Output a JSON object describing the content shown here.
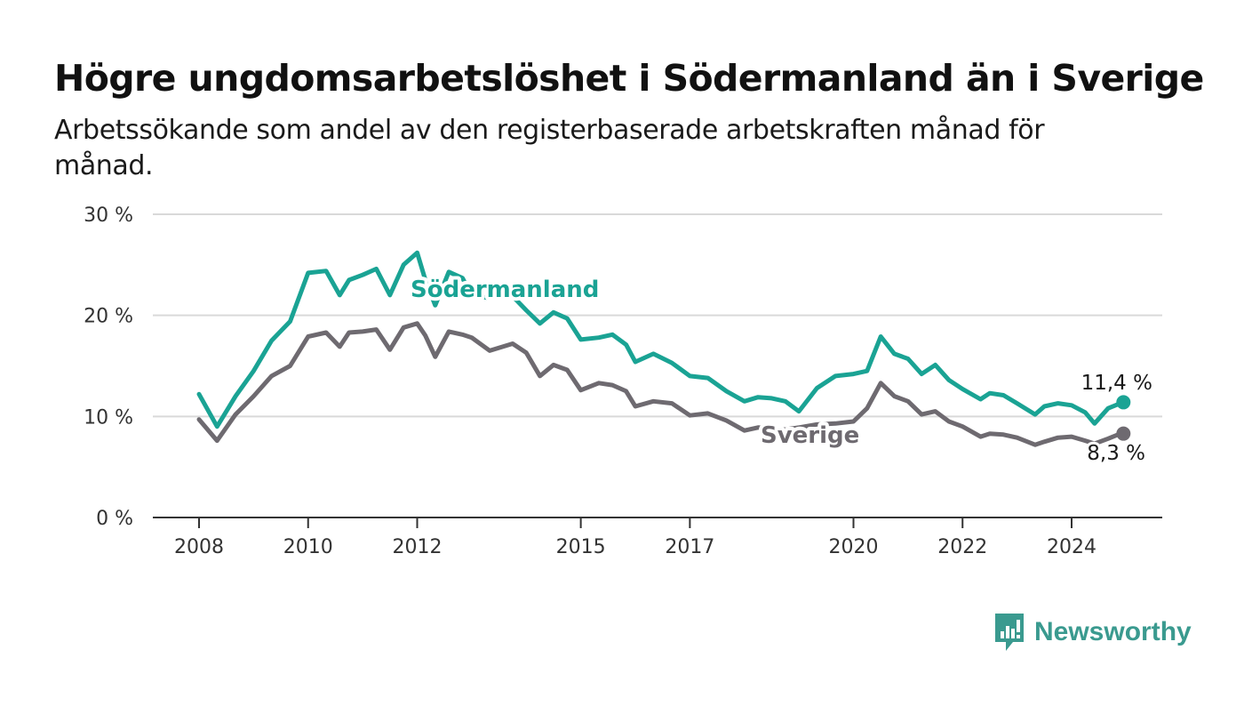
{
  "title": "Högre ungdomsarbetslöshet i Södermanland än i Sverige",
  "subtitle": "Arbetssökande som andel av den registerbaserade arbetskraften månad för månad.",
  "brand": "Newsworthy",
  "colors": {
    "sodermanland": "#1aa394",
    "sverige": "#6e6a70",
    "grid": "#d9d9d9",
    "axis": "#333333",
    "brand": "#3a9a8f"
  },
  "chart_data": {
    "type": "line",
    "title": "Högre ungdomsarbetslöshet i Södermanland än i Sverige",
    "subtitle": "Arbetssökande som andel av den registerbaserade arbetskraften månad för månad.",
    "xlabel": "",
    "ylabel": "",
    "y_unit": "%",
    "ylim": [
      0,
      30
    ],
    "y_ticks": [
      0,
      10,
      20,
      30
    ],
    "y_tick_labels": [
      "0 %",
      "10 %",
      "20 %",
      "30 %"
    ],
    "x_ticks": [
      2008,
      2010,
      2012,
      2015,
      2017,
      2020,
      2022,
      2024
    ],
    "x_tick_labels": [
      "2008",
      "2010",
      "2012",
      "2015",
      "2017",
      "2020",
      "2022",
      "2024"
    ],
    "xlim": [
      2007.5,
      2026.5
    ],
    "grid": "horizontal",
    "legend": "inline labels",
    "end_labels": {
      "sodermanland": "11,4 %",
      "sverige": "8,3 %"
    },
    "series": [
      {
        "name": "Södermanland",
        "color": "#1aa394",
        "points": [
          [
            2008.0,
            12.2
          ],
          [
            2008.33,
            9.0
          ],
          [
            2008.67,
            12.0
          ],
          [
            2009.0,
            14.5
          ],
          [
            2009.33,
            17.5
          ],
          [
            2009.67,
            19.4
          ],
          [
            2010.0,
            24.2
          ],
          [
            2010.33,
            24.4
          ],
          [
            2010.58,
            22.0
          ],
          [
            2010.75,
            23.5
          ],
          [
            2011.0,
            24.0
          ],
          [
            2011.25,
            24.6
          ],
          [
            2011.5,
            22.0
          ],
          [
            2011.75,
            25.0
          ],
          [
            2012.0,
            26.2
          ],
          [
            2012.15,
            23.5
          ],
          [
            2012.33,
            21.0
          ],
          [
            2012.58,
            24.3
          ],
          [
            2012.83,
            23.7
          ],
          [
            2013.0,
            22.0
          ],
          [
            2013.33,
            21.7
          ],
          [
            2013.75,
            21.9
          ],
          [
            2014.0,
            20.5
          ],
          [
            2014.25,
            19.2
          ],
          [
            2014.5,
            20.3
          ],
          [
            2014.75,
            19.7
          ],
          [
            2015.0,
            17.6
          ],
          [
            2015.33,
            17.8
          ],
          [
            2015.58,
            18.1
          ],
          [
            2015.83,
            17.1
          ],
          [
            2016.0,
            15.4
          ],
          [
            2016.33,
            16.2
          ],
          [
            2016.67,
            15.3
          ],
          [
            2017.0,
            14.0
          ],
          [
            2017.33,
            13.8
          ],
          [
            2017.67,
            12.5
          ],
          [
            2018.0,
            11.5
          ],
          [
            2018.25,
            11.9
          ],
          [
            2018.5,
            11.8
          ],
          [
            2018.75,
            11.5
          ],
          [
            2019.0,
            10.5
          ],
          [
            2019.33,
            12.8
          ],
          [
            2019.67,
            14.0
          ],
          [
            2020.0,
            14.2
          ],
          [
            2020.25,
            14.5
          ],
          [
            2020.5,
            17.9
          ],
          [
            2020.75,
            16.2
          ],
          [
            2021.0,
            15.7
          ],
          [
            2021.25,
            14.2
          ],
          [
            2021.5,
            15.1
          ],
          [
            2021.75,
            13.6
          ],
          [
            2022.0,
            12.7
          ],
          [
            2022.33,
            11.7
          ],
          [
            2022.5,
            12.3
          ],
          [
            2022.75,
            12.1
          ],
          [
            2023.0,
            11.3
          ],
          [
            2023.33,
            10.2
          ],
          [
            2023.5,
            11.0
          ],
          [
            2023.75,
            11.3
          ],
          [
            2024.0,
            11.1
          ],
          [
            2024.25,
            10.4
          ],
          [
            2024.42,
            9.3
          ],
          [
            2024.67,
            10.8
          ],
          [
            2024.85,
            11.2
          ],
          [
            2024.95,
            11.4
          ]
        ]
      },
      {
        "name": "Sverige",
        "color": "#6e6a70",
        "points": [
          [
            2008.0,
            9.7
          ],
          [
            2008.33,
            7.6
          ],
          [
            2008.67,
            10.2
          ],
          [
            2009.0,
            12.0
          ],
          [
            2009.33,
            14.0
          ],
          [
            2009.67,
            15.0
          ],
          [
            2010.0,
            17.9
          ],
          [
            2010.33,
            18.3
          ],
          [
            2010.58,
            16.9
          ],
          [
            2010.75,
            18.3
          ],
          [
            2011.0,
            18.4
          ],
          [
            2011.25,
            18.6
          ],
          [
            2011.5,
            16.6
          ],
          [
            2011.75,
            18.8
          ],
          [
            2012.0,
            19.2
          ],
          [
            2012.15,
            18.0
          ],
          [
            2012.33,
            15.9
          ],
          [
            2012.58,
            18.4
          ],
          [
            2012.83,
            18.1
          ],
          [
            2013.0,
            17.8
          ],
          [
            2013.33,
            16.5
          ],
          [
            2013.75,
            17.2
          ],
          [
            2014.0,
            16.3
          ],
          [
            2014.25,
            14.0
          ],
          [
            2014.5,
            15.1
          ],
          [
            2014.75,
            14.6
          ],
          [
            2015.0,
            12.6
          ],
          [
            2015.33,
            13.3
          ],
          [
            2015.58,
            13.1
          ],
          [
            2015.83,
            12.5
          ],
          [
            2016.0,
            11.0
          ],
          [
            2016.33,
            11.5
          ],
          [
            2016.67,
            11.3
          ],
          [
            2017.0,
            10.1
          ],
          [
            2017.33,
            10.3
          ],
          [
            2017.67,
            9.6
          ],
          [
            2018.0,
            8.6
          ],
          [
            2018.25,
            8.9
          ],
          [
            2018.5,
            8.8
          ],
          [
            2018.75,
            8.7
          ],
          [
            2019.0,
            8.9
          ],
          [
            2019.33,
            9.2
          ],
          [
            2019.67,
            9.3
          ],
          [
            2020.0,
            9.5
          ],
          [
            2020.25,
            10.8
          ],
          [
            2020.5,
            13.3
          ],
          [
            2020.75,
            12.0
          ],
          [
            2021.0,
            11.5
          ],
          [
            2021.25,
            10.2
          ],
          [
            2021.5,
            10.5
          ],
          [
            2021.75,
            9.5
          ],
          [
            2022.0,
            9.0
          ],
          [
            2022.33,
            8.0
          ],
          [
            2022.5,
            8.3
          ],
          [
            2022.75,
            8.2
          ],
          [
            2023.0,
            7.9
          ],
          [
            2023.33,
            7.2
          ],
          [
            2023.5,
            7.5
          ],
          [
            2023.75,
            7.9
          ],
          [
            2024.0,
            8.0
          ],
          [
            2024.25,
            7.6
          ],
          [
            2024.42,
            7.3
          ],
          [
            2024.67,
            7.8
          ],
          [
            2024.85,
            8.2
          ],
          [
            2024.95,
            8.3
          ]
        ]
      }
    ]
  }
}
